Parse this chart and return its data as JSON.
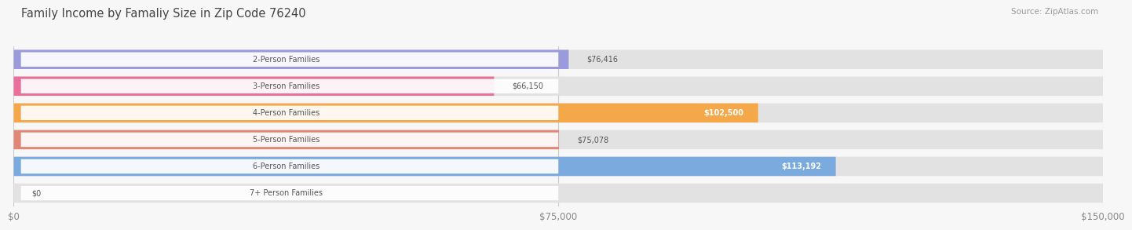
{
  "title": "Family Income by Famaliy Size in Zip Code 76240",
  "source": "Source: ZipAtlas.com",
  "categories": [
    "2-Person Families",
    "3-Person Families",
    "4-Person Families",
    "5-Person Families",
    "6-Person Families",
    "7+ Person Families"
  ],
  "values": [
    76416,
    66150,
    102500,
    75078,
    113192,
    0
  ],
  "bar_colors": [
    "#9b9bdb",
    "#e8709a",
    "#f5a84a",
    "#e08878",
    "#7aaade",
    "#c0a8d8"
  ],
  "value_label_inside": [
    false,
    false,
    true,
    false,
    true,
    false
  ],
  "max_value": 150000,
  "value_labels": [
    "$76,416",
    "$66,150",
    "$102,500",
    "$75,078",
    "$113,192",
    "$0"
  ],
  "x_ticks": [
    0,
    75000,
    150000
  ],
  "x_tick_labels": [
    "$0",
    "$75,000",
    "$150,000"
  ],
  "background_color": "#f7f7f7",
  "bar_bg_color": "#e4e4e4",
  "bar_bg_color2": "#ececec"
}
